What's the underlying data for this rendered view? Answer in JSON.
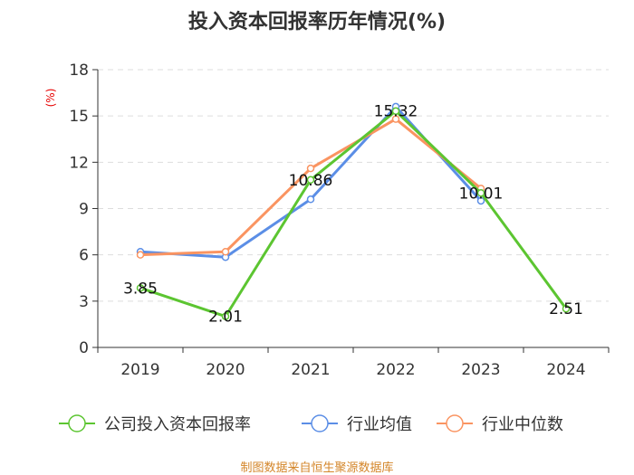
{
  "chart_data": {
    "type": "line",
    "title": "投入资本回报率历年情况(%)",
    "ylabel": "(%)",
    "categories": [
      "2019",
      "2020",
      "2021",
      "2022",
      "2023",
      "2024"
    ],
    "ylim": [
      0,
      18
    ],
    "yticks": [
      0,
      3,
      6,
      9,
      12,
      15,
      18
    ],
    "grid": true,
    "legend": "bottom",
    "series": [
      {
        "name": "公司投入资本回报率",
        "color": "#5cc531",
        "values": [
          3.85,
          2.01,
          10.86,
          15.32,
          10.01,
          2.51
        ],
        "labels": [
          "3.85",
          "2.01",
          "10.86",
          "15.32",
          "10.01",
          "2.51"
        ]
      },
      {
        "name": "行业均值",
        "color": "#5b8ee6",
        "values": [
          6.2,
          5.85,
          9.6,
          15.6,
          9.5,
          null
        ]
      },
      {
        "name": "行业中位数",
        "color": "#fa9461",
        "values": [
          6.0,
          6.2,
          11.6,
          14.8,
          10.3,
          null
        ]
      }
    ]
  },
  "footer": {
    "source": "制图数据来自恒生聚源数据库"
  }
}
